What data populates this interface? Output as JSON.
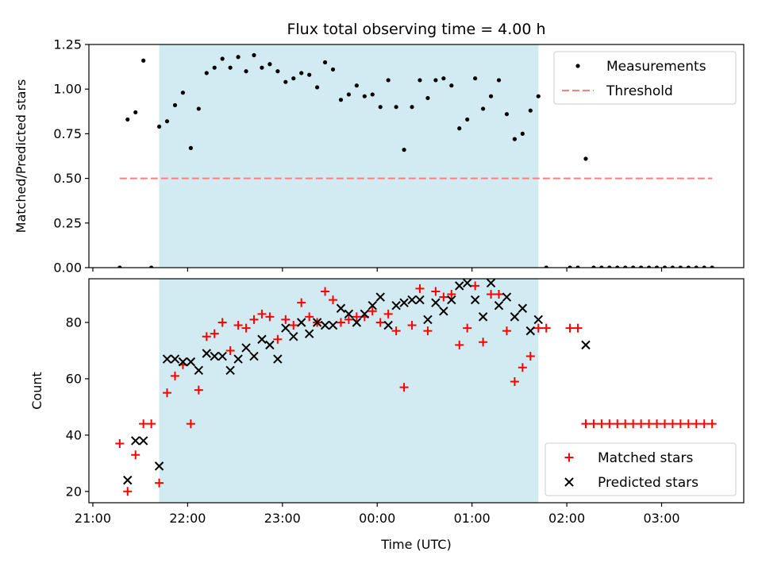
{
  "chart_data": {
    "title": "Flux total observing time = 4.00 h",
    "xlabel": "Time (UTC)",
    "x_unit": "minutes after 21:00 UTC",
    "xlim": [
      -2.5,
      412
    ],
    "x_ticks": [
      0,
      60,
      120,
      180,
      240,
      300,
      360
    ],
    "x_tick_labels": [
      "21:00",
      "22:00",
      "23:00",
      "00:00",
      "01:00",
      "02:00",
      "03:00"
    ],
    "observing_window": {
      "start": 42,
      "end": 282,
      "color": "#add8e6"
    },
    "panels": [
      {
        "type": "scatter",
        "ylabel": "Matched/Predicted stars",
        "ylim": [
          0.0,
          1.25
        ],
        "y_ticks": [
          0.0,
          0.25,
          0.5,
          0.75,
          1.0,
          1.25
        ],
        "y_tick_labels": [
          "0.00",
          "0.25",
          "0.50",
          "0.75",
          "1.00",
          "1.25"
        ],
        "legend_position": "upper right",
        "series": [
          {
            "name": "Measurements",
            "marker": "dot",
            "color": "#000000",
            "points": [
              [
                17,
                0.0
              ],
              [
                22,
                0.83
              ],
              [
                27,
                0.87
              ],
              [
                32,
                1.16
              ],
              [
                37,
                0.0
              ],
              [
                42,
                0.79
              ],
              [
                47,
                0.82
              ],
              [
                52,
                0.91
              ],
              [
                57,
                0.98
              ],
              [
                62,
                0.67
              ],
              [
                67,
                0.89
              ],
              [
                72,
                1.09
              ],
              [
                77,
                1.12
              ],
              [
                82,
                1.17
              ],
              [
                87,
                1.12
              ],
              [
                92,
                1.18
              ],
              [
                97,
                1.1
              ],
              [
                102,
                1.19
              ],
              [
                107,
                1.12
              ],
              [
                112,
                1.14
              ],
              [
                117,
                1.1
              ],
              [
                122,
                1.04
              ],
              [
                127,
                1.06
              ],
              [
                132,
                1.09
              ],
              [
                137,
                1.08
              ],
              [
                142,
                1.01
              ],
              [
                147,
                1.15
              ],
              [
                152,
                1.11
              ],
              [
                157,
                0.94
              ],
              [
                162,
                0.97
              ],
              [
                167,
                1.02
              ],
              [
                172,
                0.96
              ],
              [
                177,
                0.97
              ],
              [
                182,
                0.9
              ],
              [
                187,
                1.05
              ],
              [
                192,
                0.9
              ],
              [
                197,
                0.66
              ],
              [
                202,
                0.9
              ],
              [
                207,
                1.05
              ],
              [
                212,
                0.95
              ],
              [
                217,
                1.05
              ],
              [
                222,
                1.06
              ],
              [
                227,
                1.02
              ],
              [
                232,
                0.78
              ],
              [
                237,
                0.83
              ],
              [
                242,
                1.06
              ],
              [
                247,
                0.89
              ],
              [
                252,
                0.96
              ],
              [
                257,
                1.05
              ],
              [
                262,
                0.86
              ],
              [
                267,
                0.72
              ],
              [
                272,
                0.75
              ],
              [
                277,
                0.88
              ],
              [
                282,
                0.96
              ],
              [
                287,
                0.0
              ],
              [
                302,
                0.0
              ],
              [
                307,
                0.0
              ],
              [
                312,
                0.61
              ],
              [
                317,
                0.0
              ],
              [
                322,
                0.0
              ],
              [
                327,
                0.0
              ],
              [
                332,
                0.0
              ],
              [
                337,
                0.0
              ],
              [
                342,
                0.0
              ],
              [
                347,
                0.0
              ],
              [
                352,
                0.0
              ],
              [
                357,
                0.0
              ],
              [
                362,
                0.0
              ],
              [
                367,
                0.0
              ],
              [
                372,
                0.0
              ],
              [
                377,
                0.0
              ],
              [
                382,
                0.0
              ],
              [
                387,
                0.0
              ],
              [
                392,
                0.0
              ]
            ]
          },
          {
            "name": "Threshold",
            "marker": "dashed-line",
            "color": "#ff7f7f",
            "points": [
              [
                17,
                0.5
              ],
              [
                392,
                0.5
              ]
            ]
          }
        ]
      },
      {
        "type": "scatter",
        "ylabel": "Count",
        "ylim": [
          16,
          95.5
        ],
        "y_ticks": [
          20,
          40,
          60,
          80
        ],
        "y_tick_labels": [
          "20",
          "40",
          "60",
          "80"
        ],
        "legend_position": "lower right",
        "series": [
          {
            "name": "Matched stars",
            "marker": "plus",
            "color": "#ff0000",
            "points": [
              [
                17,
                37
              ],
              [
                22,
                20
              ],
              [
                27,
                33
              ],
              [
                32,
                44
              ],
              [
                37,
                44
              ],
              [
                42,
                23
              ],
              [
                47,
                55
              ],
              [
                52,
                61
              ],
              [
                57,
                65
              ],
              [
                62,
                44
              ],
              [
                67,
                56
              ],
              [
                72,
                75
              ],
              [
                77,
                76
              ],
              [
                82,
                80
              ],
              [
                87,
                70
              ],
              [
                92,
                79
              ],
              [
                97,
                78
              ],
              [
                102,
                81
              ],
              [
                107,
                83
              ],
              [
                112,
                82
              ],
              [
                117,
                74
              ],
              [
                122,
                81
              ],
              [
                127,
                79
              ],
              [
                132,
                87
              ],
              [
                137,
                82
              ],
              [
                142,
                80
              ],
              [
                147,
                91
              ],
              [
                152,
                88
              ],
              [
                157,
                80
              ],
              [
                162,
                81
              ],
              [
                167,
                82
              ],
              [
                172,
                82
              ],
              [
                177,
                84
              ],
              [
                182,
                80
              ],
              [
                187,
                83
              ],
              [
                192,
                77
              ],
              [
                197,
                57
              ],
              [
                202,
                79
              ],
              [
                207,
                92
              ],
              [
                212,
                77
              ],
              [
                217,
                91
              ],
              [
                222,
                89
              ],
              [
                227,
                90
              ],
              [
                232,
                72
              ],
              [
                237,
                78
              ],
              [
                242,
                93
              ],
              [
                247,
                73
              ],
              [
                252,
                90
              ],
              [
                257,
                90
              ],
              [
                262,
                77
              ],
              [
                267,
                59
              ],
              [
                272,
                64
              ],
              [
                277,
                68
              ],
              [
                282,
                78
              ],
              [
                287,
                78
              ],
              [
                302,
                78
              ],
              [
                307,
                78
              ],
              [
                312,
                44
              ],
              [
                317,
                44
              ],
              [
                322,
                44
              ],
              [
                327,
                44
              ],
              [
                332,
                44
              ],
              [
                337,
                44
              ],
              [
                342,
                44
              ],
              [
                347,
                44
              ],
              [
                352,
                44
              ],
              [
                357,
                44
              ],
              [
                362,
                44
              ],
              [
                367,
                44
              ],
              [
                372,
                44
              ],
              [
                377,
                44
              ],
              [
                382,
                44
              ],
              [
                387,
                44
              ],
              [
                392,
                44
              ]
            ]
          },
          {
            "name": "Predicted stars",
            "marker": "x",
            "color": "#000000",
            "points": [
              [
                22,
                24
              ],
              [
                27,
                38
              ],
              [
                32,
                38
              ],
              [
                42,
                29
              ],
              [
                47,
                67
              ],
              [
                52,
                67
              ],
              [
                57,
                66
              ],
              [
                62,
                66
              ],
              [
                67,
                63
              ],
              [
                72,
                69
              ],
              [
                77,
                68
              ],
              [
                82,
                68
              ],
              [
                87,
                63
              ],
              [
                92,
                67
              ],
              [
                97,
                71
              ],
              [
                102,
                68
              ],
              [
                107,
                74
              ],
              [
                112,
                72
              ],
              [
                117,
                67
              ],
              [
                122,
                78
              ],
              [
                127,
                75
              ],
              [
                132,
                80
              ],
              [
                137,
                76
              ],
              [
                142,
                80
              ],
              [
                147,
                79
              ],
              [
                152,
                79
              ],
              [
                157,
                85
              ],
              [
                162,
                83
              ],
              [
                167,
                80
              ],
              [
                172,
                83
              ],
              [
                177,
                86
              ],
              [
                182,
                89
              ],
              [
                187,
                79
              ],
              [
                192,
                86
              ],
              [
                197,
                87
              ],
              [
                202,
                88
              ],
              [
                207,
                88
              ],
              [
                212,
                81
              ],
              [
                217,
                87
              ],
              [
                222,
                84
              ],
              [
                227,
                88
              ],
              [
                232,
                93
              ],
              [
                237,
                94
              ],
              [
                242,
                88
              ],
              [
                247,
                82
              ],
              [
                252,
                94
              ],
              [
                257,
                86
              ],
              [
                262,
                89
              ],
              [
                267,
                82
              ],
              [
                272,
                85
              ],
              [
                277,
                77
              ],
              [
                282,
                81
              ],
              [
                312,
                72
              ]
            ]
          }
        ]
      }
    ]
  }
}
